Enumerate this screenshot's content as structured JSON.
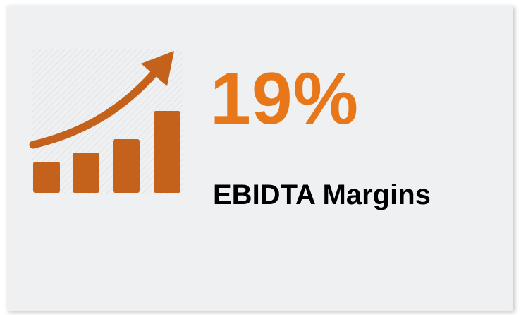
{
  "metric": {
    "value": "19%",
    "label": "EBIDTA Margins"
  }
}
